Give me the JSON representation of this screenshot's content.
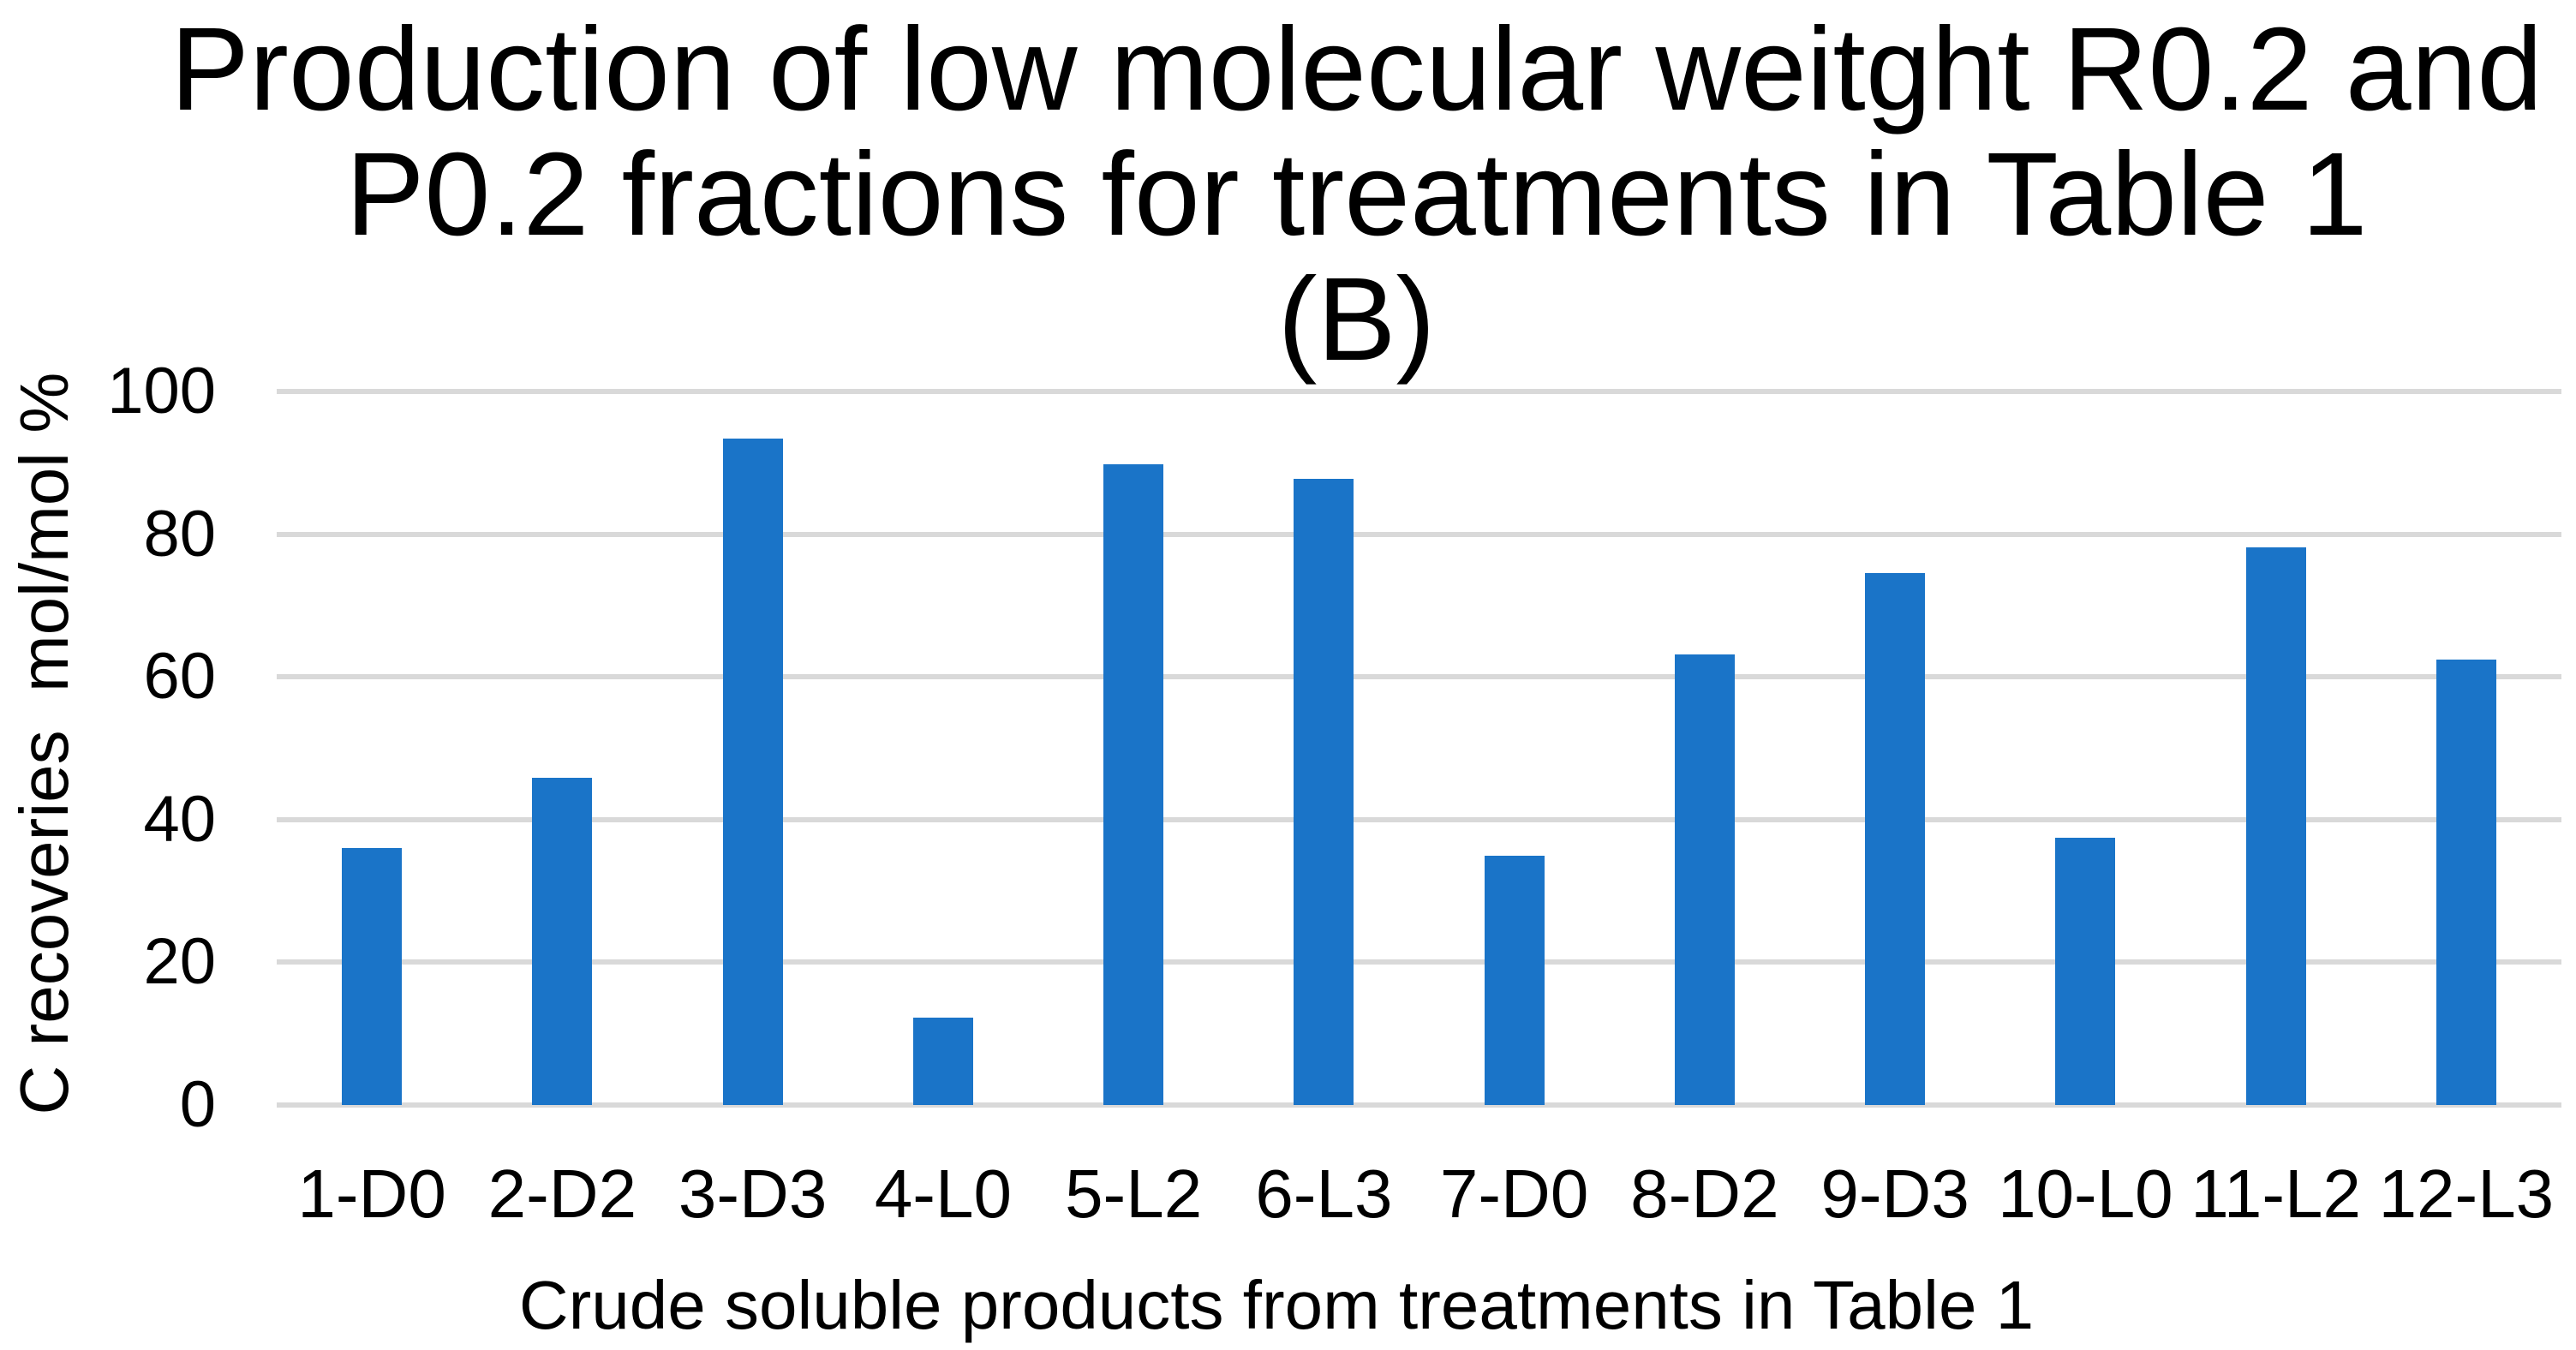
{
  "chart_data": {
    "type": "bar",
    "title": "Production of low molecular weitght R0.2 and P0.2 fractions for treatments in Table 1 (B)",
    "title_lines": [
      "Production of low molecular weitght R0.2 and",
      "P0.2 fractions for treatments in Table 1",
      "(B)"
    ],
    "xlabel": "Crude soluble products from treatments in Table 1",
    "ylabel": "C recoveries  mol/mol %",
    "categories": [
      "1-D0",
      "2-D2",
      "3-D3",
      "4-L0",
      "5-L2",
      "6-L3",
      "7-D0",
      "8-D2",
      "9-D3",
      "10-L0",
      "11-L2",
      "12-L3"
    ],
    "values": [
      36.0,
      45.9,
      93.4,
      12.3,
      89.8,
      87.7,
      34.9,
      63.2,
      74.5,
      37.4,
      78.2,
      62.4
    ],
    "yticks": [
      0,
      20,
      40,
      60,
      80,
      100
    ],
    "ylim": [
      0,
      100
    ],
    "grid": true,
    "legend": false,
    "colors": {
      "bar": "#1A74C8",
      "gridline": "#D9D9D9",
      "background": "#FFFFFF",
      "text": "#000000"
    }
  }
}
